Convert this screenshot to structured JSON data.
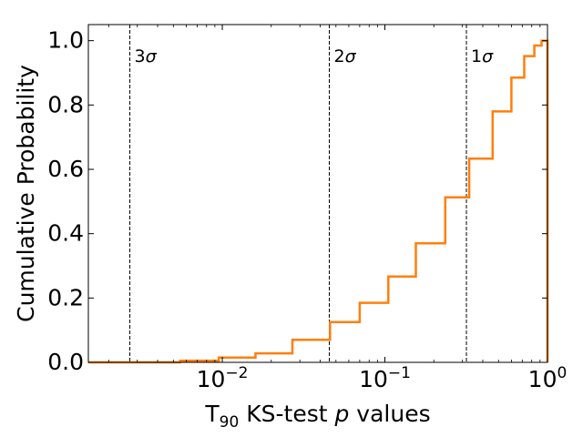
{
  "chart_data": {
    "type": "line",
    "subtype": "step",
    "xlabel": {
      "prefix": "T",
      "subscript": "90",
      "middle": " KS-test ",
      "italic": "p",
      "suffix": " values"
    },
    "ylabel": "Cumulative Probability",
    "xscale": "log",
    "xlim": [
      0.0015,
      1.0
    ],
    "ylim": [
      0,
      1.05
    ],
    "x_ticks": [
      {
        "value": 0.01,
        "base": "10",
        "exp": "−2"
      },
      {
        "value": 0.1,
        "base": "10",
        "exp": "−1"
      },
      {
        "value": 1.0,
        "base": "10",
        "exp": "0"
      }
    ],
    "y_ticks": [
      {
        "value": 0.0,
        "label": "0.0"
      },
      {
        "value": 0.2,
        "label": "0.2"
      },
      {
        "value": 0.4,
        "label": "0.4"
      },
      {
        "value": 0.6,
        "label": "0.6"
      },
      {
        "value": 0.8,
        "label": "0.8"
      },
      {
        "value": 1.0,
        "label": "1.0"
      }
    ],
    "reference_lines": [
      {
        "x": 0.0027,
        "label_num": "3",
        "label_sym": "σ"
      },
      {
        "x": 0.0455,
        "label_num": "2",
        "label_sym": "σ"
      },
      {
        "x": 0.3173,
        "label_num": "1",
        "label_sym": "σ"
      }
    ],
    "series": [
      {
        "color": "#ff7f0e",
        "x": [
          0.0015,
          0.0055,
          0.0095,
          0.016,
          0.027,
          0.046,
          0.07,
          0.105,
          0.155,
          0.235,
          0.33,
          0.46,
          0.6,
          0.72,
          0.83,
          0.92,
          0.985,
          1.0
        ],
        "y": [
          0.0,
          0.005,
          0.015,
          0.028,
          0.07,
          0.125,
          0.185,
          0.267,
          0.37,
          0.513,
          0.633,
          0.78,
          0.885,
          0.952,
          0.985,
          1.0,
          1.0,
          0.0
        ]
      }
    ]
  }
}
